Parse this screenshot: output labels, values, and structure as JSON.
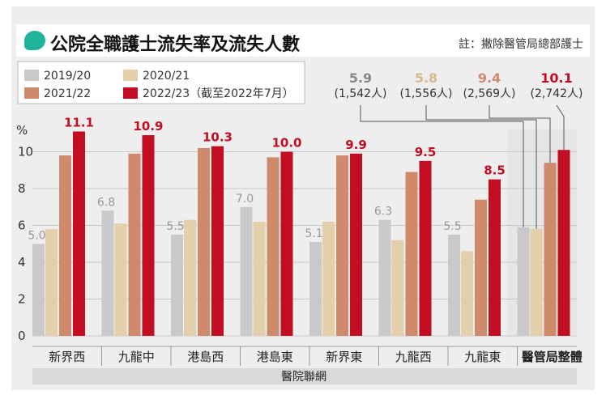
{
  "header": {
    "title": "公院全職護士流失率及流失人數",
    "note": "註：撇除醫管局總部護士"
  },
  "colors": {
    "s2019": "#c9c9cb",
    "s2020": "#e3cfa9",
    "s2021": "#cf8a6c",
    "s2022": "#c30d23",
    "panel": "#eeeeee",
    "grid": "#c8c8c8",
    "ha_box": "#e6e6e6"
  },
  "chart_data": {
    "type": "bar",
    "ylabel": "%",
    "ylim": [
      0,
      12
    ],
    "yticks": [
      0,
      2,
      4,
      6,
      8,
      10
    ],
    "grid": true,
    "legend_position": "top-left",
    "categories": [
      "新界西",
      "九龍中",
      "港島西",
      "港島東",
      "新界東",
      "九龍西",
      "九龍東",
      "醫管局整體"
    ],
    "group_label": "醫院聯網",
    "series": [
      {
        "name": "2019/20",
        "values": [
          5.0,
          6.8,
          5.5,
          7.0,
          5.1,
          6.3,
          5.5,
          5.9
        ]
      },
      {
        "name": "2020/21",
        "values": [
          5.8,
          6.1,
          6.3,
          6.2,
          6.2,
          5.2,
          4.6,
          5.8
        ]
      },
      {
        "name": "2021/22",
        "values": [
          9.8,
          9.9,
          10.2,
          9.7,
          9.8,
          8.9,
          7.4,
          9.4
        ]
      },
      {
        "name": "2022/23（截至2022年7月）",
        "values": [
          11.1,
          10.9,
          10.3,
          10.0,
          9.9,
          9.5,
          8.5,
          10.1
        ]
      }
    ],
    "labels_2019": [
      "5.0",
      "6.8",
      "5.5",
      "7.0",
      "5.1",
      "6.3",
      "5.5"
    ],
    "labels_2022": [
      "11.1",
      "10.9",
      "10.3",
      "10.0",
      "9.9",
      "9.5",
      "8.5"
    ],
    "callouts": [
      {
        "value": "5.9",
        "count": "(1,542人)"
      },
      {
        "value": "5.8",
        "count": "(1,556人)"
      },
      {
        "value": "9.4",
        "count": "(2,569人)"
      },
      {
        "value": "10.1",
        "count": "(2,742人)"
      }
    ]
  }
}
